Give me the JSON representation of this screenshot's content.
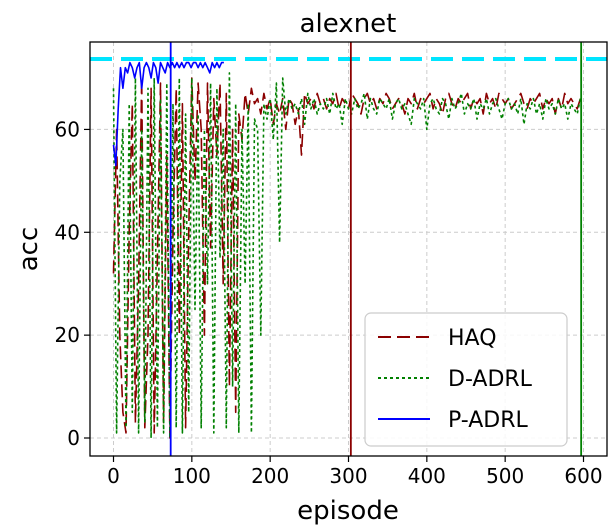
{
  "chart_data": {
    "type": "line",
    "title": "alexnet",
    "xlabel": "episode",
    "ylabel": "acc",
    "xlim": [
      -30,
      630
    ],
    "ylim": [
      -3.5,
      77
    ],
    "grid": true,
    "legend_position": "lower-right",
    "x_ticks": [
      0,
      100,
      200,
      300,
      400,
      500,
      600
    ],
    "y_ticks": [
      0,
      20,
      40,
      60
    ],
    "hlines": [
      {
        "y": 73.7,
        "color": "#00e5ff",
        "style": "dashed"
      }
    ],
    "vlines": [
      {
        "x": 73,
        "color": "#0000ff"
      },
      {
        "x": 303,
        "color": "#8b0000"
      },
      {
        "x": 597,
        "color": "#008000"
      }
    ],
    "series": [
      {
        "name": "HAQ",
        "color": "#8b0000",
        "style": "dashed",
        "x": [
          0,
          4,
          8,
          12,
          16,
          20,
          24,
          28,
          32,
          36,
          40,
          44,
          48,
          52,
          56,
          60,
          64,
          68,
          72,
          76,
          80,
          84,
          88,
          92,
          96,
          100,
          104,
          108,
          112,
          116,
          120,
          124,
          128,
          132,
          136,
          140,
          144,
          148,
          152,
          156,
          160,
          164,
          168,
          172,
          176,
          180,
          184,
          188,
          192,
          196,
          200,
          204,
          208,
          212,
          216,
          220,
          224,
          228,
          232,
          236,
          240,
          244,
          248,
          252,
          256,
          260,
          264,
          268,
          272,
          276,
          280,
          284,
          288,
          292,
          296,
          300,
          304,
          308,
          312,
          316,
          320,
          324,
          328,
          332,
          336,
          340,
          344,
          348,
          352,
          356,
          360,
          364,
          368,
          372,
          376,
          380,
          384,
          388,
          392,
          396,
          400,
          404,
          408,
          412,
          416,
          420,
          424,
          428,
          432,
          436,
          440,
          444,
          448,
          452,
          456,
          460,
          464,
          468,
          472,
          476,
          480,
          484,
          488,
          492,
          496,
          500,
          504,
          508,
          512,
          516,
          520,
          524,
          528,
          532,
          536,
          540,
          544,
          548,
          552,
          556,
          560,
          564,
          568,
          572,
          576,
          580,
          584,
          588,
          592,
          596
        ],
        "y": [
          32,
          60,
          20,
          5,
          1,
          40,
          65,
          3,
          30,
          70,
          2,
          20,
          68,
          1,
          35,
          69,
          3,
          55,
          0,
          40,
          68,
          20,
          65,
          2,
          40,
          70,
          50,
          69,
          60,
          20,
          69,
          37,
          66,
          55,
          69,
          30,
          67,
          10,
          60,
          5,
          63,
          58,
          67,
          63,
          68,
          65,
          66,
          63,
          67,
          64,
          66,
          61,
          65,
          63,
          66,
          60,
          66,
          65,
          61,
          64,
          55,
          67,
          65,
          66,
          64,
          67,
          65,
          66,
          64,
          66,
          65,
          67,
          64,
          66,
          65,
          64,
          67,
          66,
          65,
          63,
          66,
          67,
          65,
          66,
          64,
          66,
          65,
          67,
          66,
          64,
          65,
          66,
          65,
          63,
          66,
          65,
          67,
          64,
          66,
          65,
          66,
          67,
          64,
          66,
          65,
          63,
          66,
          67,
          65,
          64,
          66,
          65,
          66,
          67,
          64,
          66,
          65,
          66,
          63,
          67,
          65,
          66,
          64,
          67,
          66,
          65,
          66,
          64,
          65,
          66,
          67,
          65,
          64,
          66,
          65,
          66,
          67,
          64,
          66,
          65,
          66,
          63,
          66,
          64,
          67,
          65,
          66,
          65,
          64,
          66
        ]
      },
      {
        "name": "D-ADRL",
        "color": "#008000",
        "style": "dotted",
        "x": [
          0,
          4,
          8,
          12,
          16,
          20,
          24,
          28,
          32,
          36,
          40,
          44,
          48,
          52,
          56,
          60,
          64,
          68,
          72,
          76,
          80,
          84,
          88,
          92,
          96,
          100,
          104,
          108,
          112,
          116,
          120,
          124,
          128,
          132,
          136,
          140,
          144,
          148,
          152,
          156,
          160,
          164,
          168,
          172,
          176,
          180,
          184,
          188,
          192,
          196,
          200,
          204,
          208,
          212,
          216,
          220,
          224,
          228,
          232,
          236,
          240,
          244,
          248,
          252,
          256,
          260,
          264,
          268,
          272,
          276,
          280,
          284,
          288,
          292,
          296,
          300,
          304,
          308,
          312,
          316,
          320,
          324,
          328,
          332,
          336,
          340,
          344,
          348,
          352,
          356,
          360,
          364,
          368,
          372,
          376,
          380,
          384,
          388,
          392,
          396,
          400,
          404,
          408,
          412,
          416,
          420,
          424,
          428,
          432,
          436,
          440,
          444,
          448,
          452,
          456,
          460,
          464,
          468,
          472,
          476,
          480,
          484,
          488,
          492,
          496,
          500,
          504,
          508,
          512,
          516,
          520,
          524,
          528,
          532,
          536,
          540,
          544,
          548,
          552,
          556,
          560,
          564,
          568,
          572,
          576,
          580,
          584,
          588,
          592,
          596
        ],
        "y": [
          68,
          1,
          50,
          60,
          2,
          65,
          5,
          70,
          1,
          60,
          3,
          68,
          0,
          70,
          2,
          66,
          1,
          69,
          0,
          65,
          2,
          70,
          1,
          63,
          5,
          70,
          25,
          63,
          2,
          60,
          30,
          69,
          1,
          68,
          35,
          60,
          2,
          71,
          10,
          65,
          1,
          60,
          30,
          65,
          1,
          62,
          60,
          20,
          65,
          62,
          66,
          58,
          69,
          38,
          70,
          63,
          66,
          64,
          65,
          63,
          66,
          61,
          67,
          64,
          66,
          63,
          65,
          64,
          66,
          63,
          67,
          64,
          65,
          61,
          66,
          64,
          63,
          66,
          64,
          65,
          67,
          62,
          66,
          64,
          63,
          66,
          65,
          64,
          66,
          62,
          65,
          66,
          64,
          65,
          63,
          61,
          66,
          65,
          64,
          66,
          60,
          65,
          66,
          64,
          63,
          66,
          65,
          62,
          66,
          64,
          65,
          67,
          63,
          65,
          64,
          66,
          62,
          65,
          64,
          66,
          63,
          65,
          66,
          64,
          62,
          65,
          66,
          64,
          65,
          63,
          66,
          61,
          65,
          64,
          66,
          63,
          65,
          62,
          66,
          64,
          65,
          63,
          66,
          64,
          65,
          62,
          65,
          64,
          63,
          66
        ]
      },
      {
        "name": "P-ADRL",
        "color": "#0000ff",
        "style": "solid",
        "x": [
          0,
          3,
          6,
          9,
          12,
          15,
          18,
          21,
          24,
          27,
          30,
          33,
          36,
          39,
          42,
          45,
          48,
          51,
          54,
          57,
          60,
          63,
          66,
          69,
          72,
          75,
          78,
          81,
          84,
          87,
          90,
          93,
          96,
          99,
          102,
          105,
          108,
          111,
          114,
          117,
          120,
          123,
          126,
          129,
          132,
          135,
          138,
          141
        ],
        "y": [
          57,
          53,
          64,
          72,
          68,
          72,
          71,
          73,
          72,
          70,
          72,
          73,
          68,
          72,
          73,
          72,
          70,
          73,
          72,
          69,
          73,
          72,
          71,
          73,
          72,
          73,
          72,
          73,
          72,
          73,
          72,
          73,
          73,
          72,
          73,
          73,
          72,
          73,
          72,
          73,
          72,
          71,
          73,
          72,
          73,
          72,
          73,
          73
        ]
      }
    ]
  }
}
